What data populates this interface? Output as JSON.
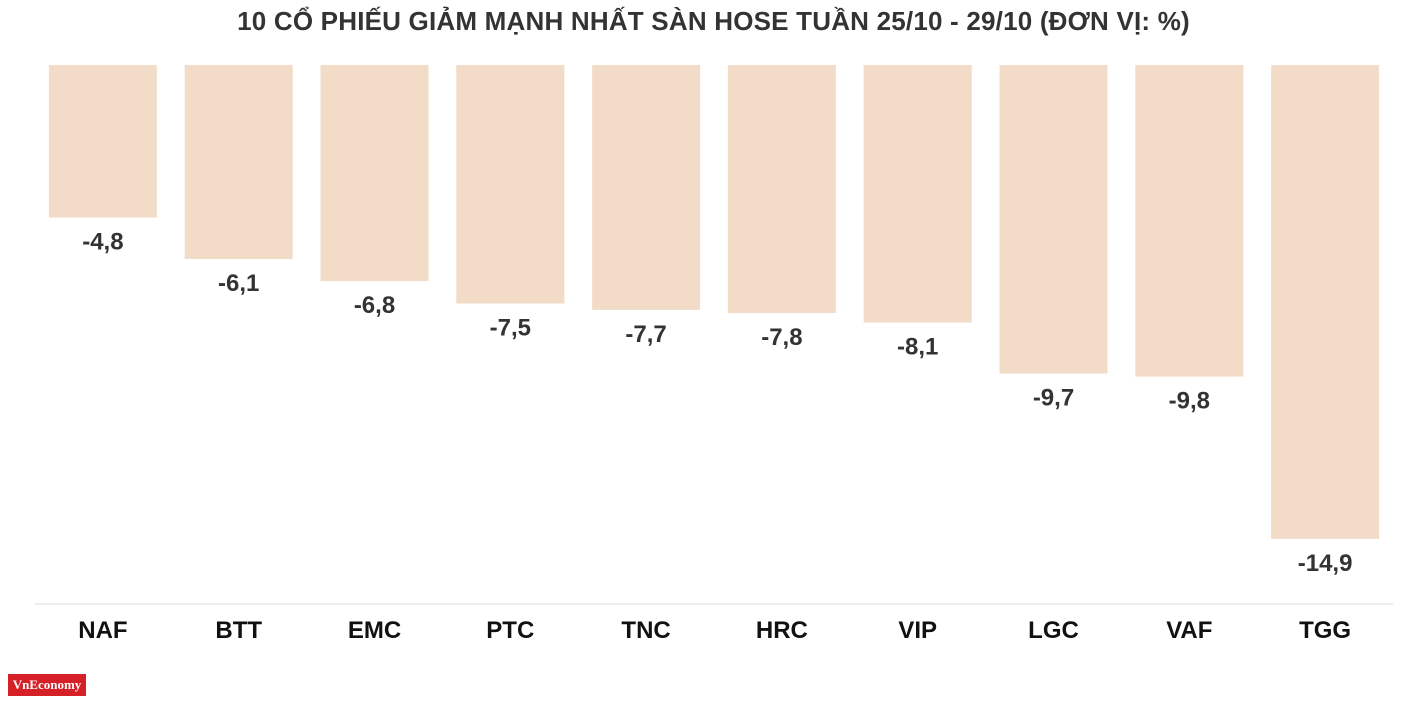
{
  "chart_data": {
    "type": "bar",
    "title": "10 CỔ PHIẾU GIẢM MẠNH NHẤT SÀN HOSE TUẦN 25/10 - 29/10 (ĐƠN VỊ: %)",
    "categories": [
      "NAF",
      "BTT",
      "EMC",
      "PTC",
      "TNC",
      "HRC",
      "VIP",
      "LGC",
      "VAF",
      "TGG"
    ],
    "values": [
      -4.8,
      -6.1,
      -6.8,
      -7.5,
      -7.7,
      -7.8,
      -8.1,
      -9.7,
      -9.8,
      -14.9
    ],
    "value_labels": [
      "-4,8",
      "-6,1",
      "-6,8",
      "-7,5",
      "-7,7",
      "-7,8",
      "-8,1",
      "-9,7",
      "-9,8",
      "-14,9"
    ],
    "ylim": [
      -17,
      0
    ],
    "grid": false,
    "legend": "none",
    "bar_color": "#f2dcc8",
    "label_color": "#333333"
  },
  "brand": {
    "logo_text": "VnEconomy",
    "color": "#d62027"
  }
}
